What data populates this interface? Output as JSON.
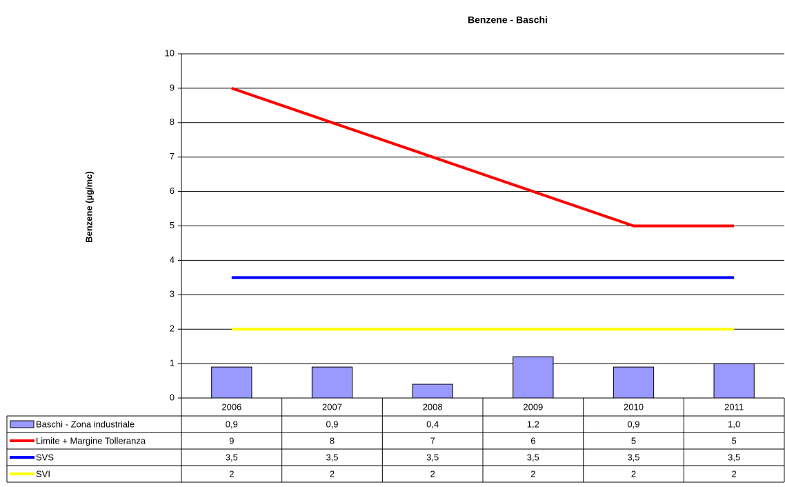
{
  "chart_data": {
    "type": "bar",
    "title": "Benzene - Baschi",
    "y_label": "Benzene (µg/mc)",
    "categories": [
      "2006",
      "2007",
      "2008",
      "2009",
      "2010",
      "2011"
    ],
    "ylim": [
      0,
      10
    ],
    "yticks": [
      0,
      1,
      2,
      3,
      4,
      5,
      6,
      7,
      8,
      9,
      10
    ],
    "grid": true,
    "data_table": true,
    "series": [
      {
        "name": "Baschi - Zona industriale",
        "type": "bar",
        "color": "#9999ff",
        "values": [
          0.9,
          0.9,
          0.4,
          1.2,
          0.9,
          1.0
        ],
        "value_labels": [
          "0,9",
          "0,9",
          "0,4",
          "1,2",
          "0,9",
          "1,0"
        ]
      },
      {
        "name": "Limite + Margine Tolleranza",
        "type": "line",
        "color": "#ff0000",
        "values": [
          9,
          8,
          7,
          6,
          5,
          5
        ]
      },
      {
        "name": "SVS",
        "type": "line",
        "color": "#0000ff",
        "values": [
          3.5,
          3.5,
          3.5,
          3.5,
          3.5,
          3.5
        ],
        "value_labels": [
          "3,5",
          "3,5",
          "3,5",
          "3,5",
          "3,5",
          "3,5"
        ]
      },
      {
        "name": "SVI",
        "type": "line",
        "color": "#ffff00",
        "values": [
          2,
          2,
          2,
          2,
          2,
          2
        ]
      }
    ]
  }
}
